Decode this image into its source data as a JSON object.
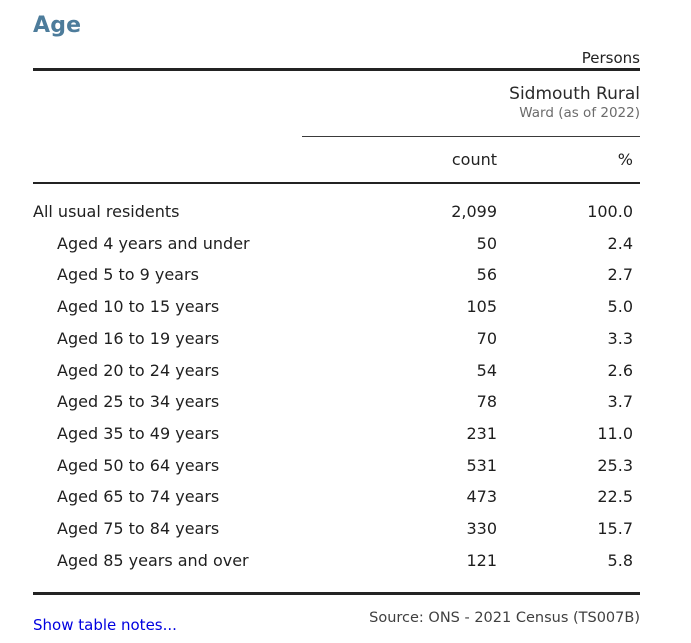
{
  "page": {
    "title": "Age",
    "accent_color": "#4d7c9b",
    "link_color": "#0000e0"
  },
  "header": {
    "population_base": "Persons",
    "area_name": "Sidmouth Rural",
    "area_type": "Ward (as of 2022)"
  },
  "table": {
    "columns": [
      {
        "label": "count"
      },
      {
        "label": "%"
      }
    ],
    "rows": [
      {
        "label": "All usual residents",
        "count": "2,099",
        "percent": "100.0",
        "indent": false
      },
      {
        "label": "Aged 4 years and under",
        "count": "50",
        "percent": "2.4",
        "indent": true
      },
      {
        "label": "Aged 5 to 9 years",
        "count": "56",
        "percent": "2.7",
        "indent": true
      },
      {
        "label": "Aged 10 to 15 years",
        "count": "105",
        "percent": "5.0",
        "indent": true
      },
      {
        "label": "Aged 16 to 19 years",
        "count": "70",
        "percent": "3.3",
        "indent": true
      },
      {
        "label": "Aged 20 to 24 years",
        "count": "54",
        "percent": "2.6",
        "indent": true
      },
      {
        "label": "Aged 25 to 34 years",
        "count": "78",
        "percent": "3.7",
        "indent": true
      },
      {
        "label": "Aged 35 to 49 years",
        "count": "231",
        "percent": "11.0",
        "indent": true
      },
      {
        "label": "Aged 50 to 64 years",
        "count": "531",
        "percent": "25.3",
        "indent": true
      },
      {
        "label": "Aged 65 to 74 years",
        "count": "473",
        "percent": "22.5",
        "indent": true
      },
      {
        "label": "Aged 75 to 84 years",
        "count": "330",
        "percent": "15.7",
        "indent": true
      },
      {
        "label": "Aged 85 years and over",
        "count": "121",
        "percent": "5.8",
        "indent": true
      }
    ]
  },
  "footer": {
    "notes_link": "Show table notes...",
    "source": "Source: ONS - 2021 Census (TS007B)"
  }
}
